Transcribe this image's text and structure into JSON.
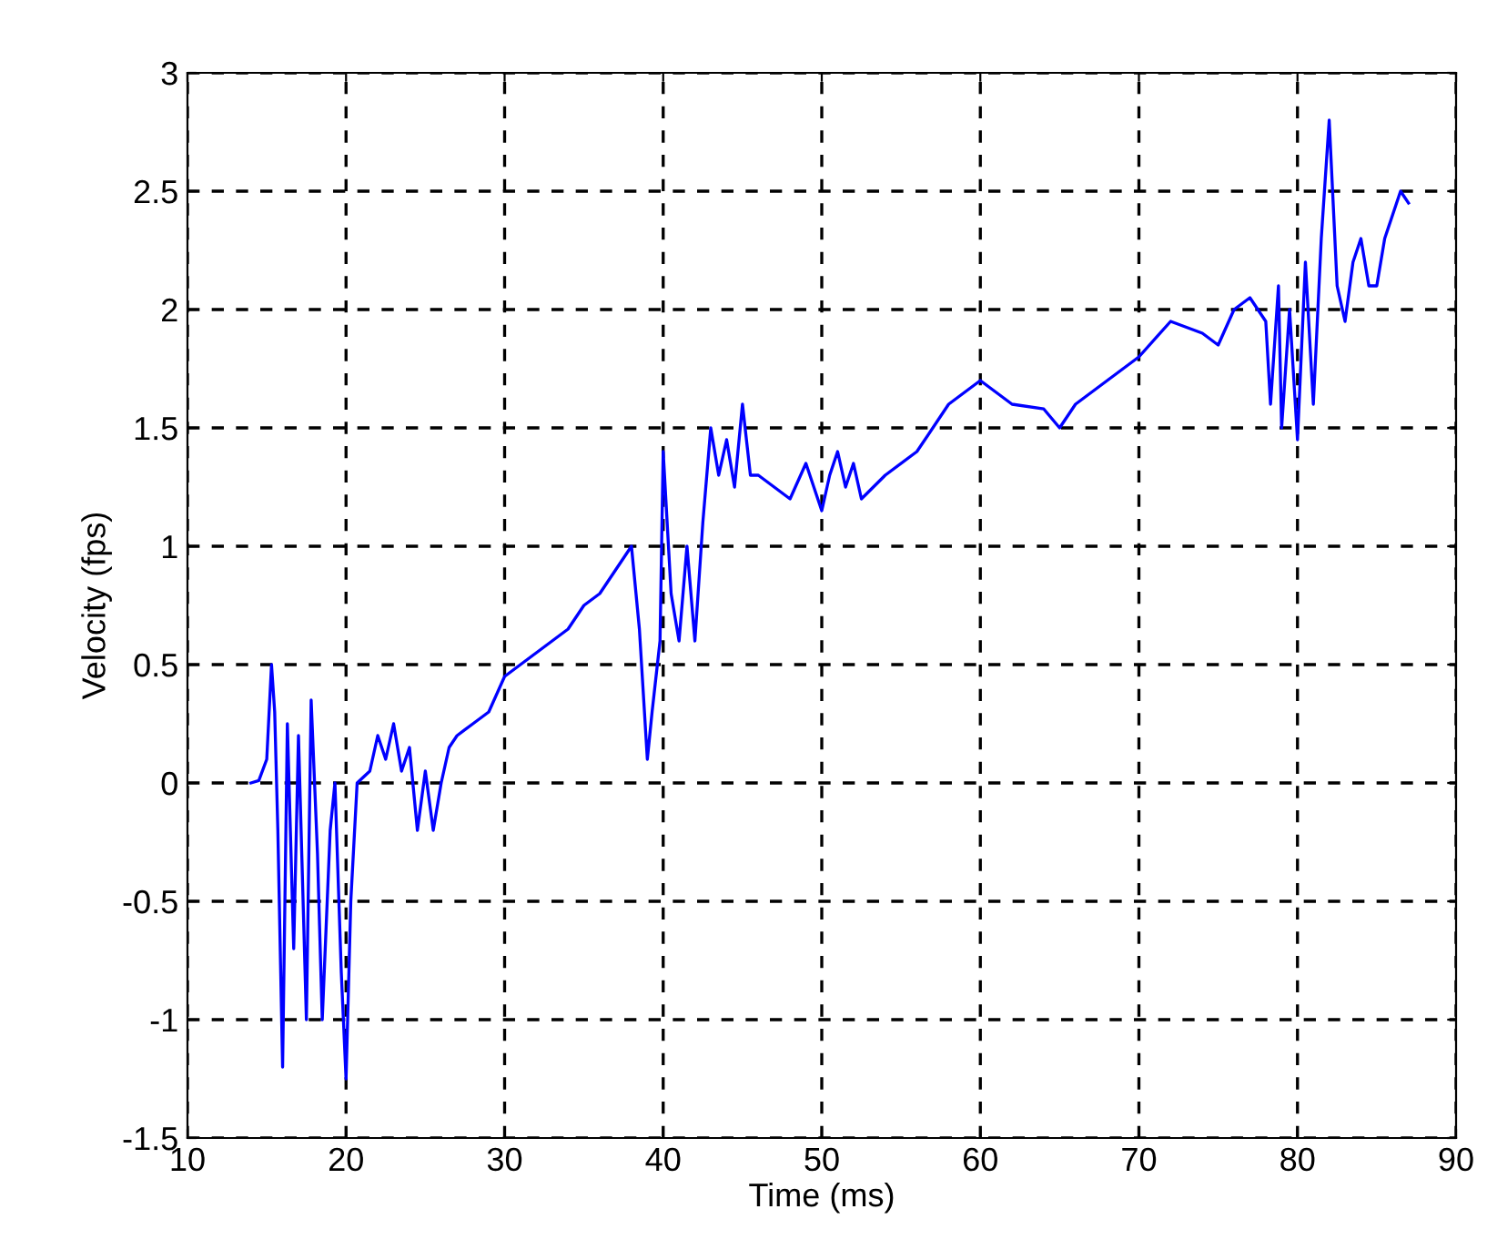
{
  "chart_data": {
    "type": "line",
    "xlabel": "Time (ms)",
    "ylabel": "Velocity (fps)",
    "xlim": [
      10,
      90
    ],
    "xticks": [
      10,
      20,
      30,
      40,
      50,
      60,
      70,
      80,
      90
    ],
    "ylim": [
      -1.5,
      3
    ],
    "yticks": [
      -1.5,
      -1,
      -0.5,
      0,
      0.5,
      1,
      1.5,
      2,
      2.5,
      3
    ],
    "grid": true,
    "line_style": "solid",
    "marker": "none",
    "series": [
      {
        "color": "#0000ff",
        "x": [
          14,
          14.5,
          15,
          15.3,
          15.5,
          15.7,
          16,
          16.3,
          16.7,
          17,
          17.5,
          17.8,
          18.2,
          18.5,
          19,
          19.3,
          19.7,
          20,
          20.3,
          20.7,
          21.5,
          22,
          22.5,
          23,
          23.5,
          24,
          24.5,
          25,
          25.5,
          26,
          26.5,
          27,
          28,
          29,
          30,
          31,
          32,
          33,
          34,
          35,
          36,
          37,
          38,
          38.5,
          39,
          39.3,
          39.8,
          40,
          40.5,
          41,
          41.5,
          42,
          42.5,
          43,
          43.5,
          44,
          44.5,
          45,
          45.5,
          46,
          47,
          48,
          49,
          50,
          50.5,
          51,
          51.5,
          52,
          52.5,
          54,
          56,
          58,
          60,
          62,
          64,
          65,
          66,
          68,
          70,
          72,
          74,
          75,
          76,
          77,
          78,
          78.3,
          78.8,
          79,
          79.5,
          80,
          80.5,
          81,
          81.5,
          82,
          82.5,
          83,
          83.5,
          84,
          84.5,
          85,
          85.5,
          86,
          86.5,
          87
        ],
        "values": [
          0,
          0.01,
          0.1,
          0.5,
          0.3,
          -0.2,
          -1.2,
          0.25,
          -0.7,
          0.2,
          -1.0,
          0.35,
          -0.3,
          -1.0,
          -0.2,
          0.0,
          -0.8,
          -1.25,
          -0.5,
          0.0,
          0.05,
          0.2,
          0.1,
          0.25,
          0.05,
          0.15,
          -0.2,
          0.05,
          -0.2,
          0.0,
          0.15,
          0.2,
          0.25,
          0.3,
          0.45,
          0.5,
          0.55,
          0.6,
          0.65,
          0.75,
          0.8,
          0.9,
          1.0,
          0.65,
          0.1,
          0.3,
          0.6,
          1.4,
          0.8,
          0.6,
          1.0,
          0.6,
          1.1,
          1.5,
          1.3,
          1.45,
          1.25,
          1.6,
          1.3,
          1.3,
          1.25,
          1.2,
          1.35,
          1.15,
          1.3,
          1.4,
          1.25,
          1.35,
          1.2,
          1.3,
          1.4,
          1.6,
          1.7,
          1.6,
          1.58,
          1.5,
          1.6,
          1.7,
          1.8,
          1.95,
          1.9,
          1.85,
          2.0,
          2.05,
          1.95,
          1.6,
          2.1,
          1.5,
          2.0,
          1.45,
          2.2,
          1.6,
          2.3,
          2.8,
          2.1,
          1.95,
          2.2,
          2.3,
          2.1,
          2.1,
          2.3,
          2.4,
          2.5,
          2.45
        ]
      }
    ]
  }
}
